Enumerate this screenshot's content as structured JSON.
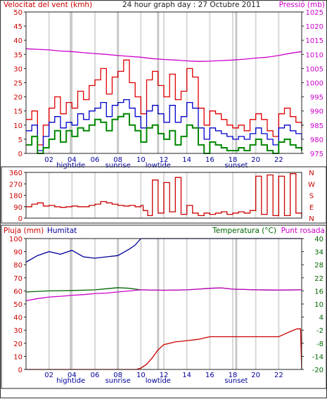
{
  "colors": {
    "wind": "#cc0000",
    "gust": "#e00000",
    "avg_wind": "#0000cc",
    "wind_min": "#008800",
    "pressure": "#cc00cc",
    "direction": "#cc0000",
    "rain": "#cc0000",
    "humidity": "#000099",
    "temperature": "#006600",
    "dewpoint": "#cc00cc",
    "grid": "#d8d8d8",
    "marker": "#c8c8c8"
  },
  "chart_data": [
    {
      "type": "line",
      "panel": "wind-pressure",
      "title": "24 hour graph day : 27 Octubre 2011",
      "left_label": "Velocitat del vent (kmh)",
      "right_label": "Pressió (mb)",
      "y_left": {
        "min": 0,
        "max": 50,
        "ticks": [
          "0",
          "5",
          "10",
          "15",
          "20",
          "25",
          "30",
          "35",
          "40",
          "45",
          "50"
        ]
      },
      "y_right": {
        "min": 975,
        "max": 1025,
        "ticks": [
          "975",
          "980",
          "985",
          "990",
          "995",
          "1000",
          "1005",
          "1010",
          "1015",
          "1020",
          "1025"
        ]
      },
      "x_ticks": [
        "02",
        "04",
        "06",
        "08",
        "10",
        "12",
        "14",
        "16",
        "18",
        "20",
        "22"
      ],
      "x_events": [
        {
          "label": "hightide",
          "x": 3.9
        },
        {
          "label": "sunrise",
          "x": 8.0
        },
        {
          "label": "lowtide",
          "x": 11.5
        },
        {
          "label": "sunset",
          "x": 18.3
        }
      ],
      "x_range": [
        0,
        24
      ],
      "series": [
        {
          "key": "pressure",
          "axis": "right",
          "x": [
            0,
            1,
            2,
            3,
            4,
            5,
            6,
            7,
            8,
            9,
            10,
            11,
            12,
            13,
            14,
            15,
            16,
            17,
            18,
            19,
            20,
            21,
            22,
            23,
            24
          ],
          "values": [
            1012,
            1011.8,
            1011.6,
            1011.2,
            1011,
            1010.6,
            1010.3,
            1010,
            1009.6,
            1009.3,
            1009,
            1008.5,
            1008.2,
            1008,
            1007.7,
            1007.5,
            1007.6,
            1007.8,
            1008,
            1008.3,
            1008.7,
            1009,
            1009.6,
            1010.4,
            1011
          ]
        },
        {
          "key": "gust",
          "axis": "left",
          "x": [
            0,
            0.5,
            1,
            1.5,
            2,
            2.5,
            3,
            3.5,
            4,
            4.5,
            5,
            5.5,
            6,
            6.5,
            7,
            7.5,
            8,
            8.5,
            9,
            9.5,
            10,
            10.5,
            11,
            11.5,
            12,
            12.5,
            13,
            13.5,
            14,
            14.5,
            15,
            15.5,
            16,
            16.5,
            17,
            17.5,
            18,
            18.5,
            19,
            19.5,
            20,
            20.5,
            21,
            21.5,
            22,
            22.5,
            23,
            23.5,
            24
          ],
          "values": [
            12,
            15,
            3,
            10,
            16,
            20,
            14,
            18,
            16,
            22,
            19,
            24,
            26,
            30,
            21,
            27,
            29,
            33,
            25,
            20,
            14,
            26,
            29,
            24,
            20,
            28,
            19,
            22,
            30,
            27,
            16,
            10,
            15,
            14,
            12,
            10,
            9,
            10,
            8,
            12,
            14,
            12,
            8,
            6,
            14,
            16,
            13,
            11,
            9
          ]
        },
        {
          "key": "avg_wind",
          "axis": "left",
          "x": [
            0,
            0.5,
            1,
            1.5,
            2,
            2.5,
            3,
            3.5,
            4,
            4.5,
            5,
            5.5,
            6,
            6.5,
            7,
            7.5,
            8,
            8.5,
            9,
            9.5,
            10,
            10.5,
            11,
            11.5,
            12,
            12.5,
            13,
            13.5,
            14,
            14.5,
            15,
            15.5,
            16,
            16.5,
            17,
            17.5,
            18,
            18.5,
            19,
            19.5,
            20,
            20.5,
            21,
            21.5,
            22,
            22.5,
            23,
            23.5,
            24
          ],
          "values": [
            8,
            10,
            1,
            6,
            11,
            13,
            9,
            11,
            10,
            14,
            12,
            15,
            16,
            18,
            13,
            17,
            18,
            19,
            16,
            13,
            9,
            15,
            17,
            14,
            11,
            17,
            11,
            13,
            18,
            16,
            9,
            5,
            9,
            8,
            7,
            6,
            5,
            6,
            5,
            7,
            9,
            7,
            5,
            3,
            9,
            10,
            8,
            7,
            5
          ]
        },
        {
          "key": "wind_min",
          "axis": "left",
          "x": [
            0,
            0.5,
            1,
            1.5,
            2,
            2.5,
            3,
            3.5,
            4,
            4.5,
            5,
            5.5,
            6,
            6.5,
            7,
            7.5,
            8,
            8.5,
            9,
            9.5,
            10,
            10.5,
            11,
            11.5,
            12,
            12.5,
            13,
            13.5,
            14,
            14.5,
            15,
            15.5,
            16,
            16.5,
            17,
            17.5,
            18,
            18.5,
            19,
            19.5,
            20,
            20.5,
            21,
            21.5,
            22,
            22.5,
            23,
            23.5,
            24
          ],
          "values": [
            3,
            6,
            0,
            2,
            5,
            8,
            4,
            8,
            6,
            9,
            8,
            10,
            12,
            11,
            8,
            12,
            13,
            14,
            10,
            8,
            4,
            9,
            10,
            7,
            5,
            8,
            3,
            6,
            10,
            9,
            3,
            0,
            4,
            3,
            2,
            1,
            1,
            2,
            1,
            3,
            5,
            3,
            1,
            0,
            4,
            5,
            3,
            2,
            1
          ]
        }
      ]
    },
    {
      "type": "line",
      "panel": "wind-direction",
      "y_left": {
        "min": 0,
        "max": 360,
        "ticks": [
          "0",
          "90",
          "180",
          "270",
          "360"
        ]
      },
      "y_right_labels": [
        "N",
        "W",
        "S",
        "E",
        "N"
      ],
      "x_ticks": [
        "02",
        "04",
        "06",
        "08",
        "10",
        "12",
        "14",
        "16",
        "18",
        "20",
        "22"
      ],
      "x_range": [
        0,
        24
      ],
      "series": [
        {
          "key": "direction",
          "x": [
            0,
            0.5,
            1,
            1.5,
            2,
            2.5,
            3,
            3.5,
            4,
            4.5,
            5,
            5.5,
            6,
            6.5,
            7,
            7.5,
            8,
            8.5,
            9,
            9.5,
            10,
            10.2,
            10.6,
            11,
            11.5,
            12,
            12.5,
            13,
            13.5,
            14,
            14.5,
            15,
            15.5,
            16,
            16.5,
            17,
            17.5,
            18,
            18.5,
            19,
            19.5,
            20,
            20.5,
            21,
            21.5,
            22,
            22.5,
            23,
            23.5,
            24
          ],
          "values": [
            90,
            110,
            120,
            95,
            100,
            90,
            85,
            90,
            95,
            90,
            90,
            100,
            110,
            130,
            120,
            110,
            100,
            95,
            100,
            90,
            100,
            60,
            20,
            300,
            40,
            280,
            50,
            320,
            30,
            100,
            40,
            20,
            40,
            30,
            40,
            50,
            30,
            40,
            50,
            40,
            60,
            330,
            30,
            340,
            20,
            330,
            20,
            350,
            40,
            10
          ]
        }
      ]
    },
    {
      "type": "line",
      "panel": "rain-humidity-temperature",
      "left_label": "Pluja (mm)",
      "mid_label": "Humitat",
      "right_label": "Temperatura (°C)",
      "right_label2": "Punt rosada",
      "y_left": {
        "min": 0,
        "max": 100,
        "ticks": [
          "0",
          "10",
          "20",
          "30",
          "40",
          "50",
          "60",
          "70",
          "80",
          "90",
          "100"
        ]
      },
      "y_right": {
        "min": -20,
        "max": 40,
        "ticks": [
          "-20",
          "-14",
          "-8",
          "-2",
          "4",
          "10",
          "16",
          "22",
          "28",
          "34",
          "40"
        ]
      },
      "x_ticks": [
        "02",
        "04",
        "06",
        "08",
        "10",
        "12",
        "14",
        "16",
        "18",
        "20",
        "22"
      ],
      "x_events": [
        {
          "label": "hightide",
          "x": 3.9
        },
        {
          "label": "sunrise",
          "x": 8.0
        },
        {
          "label": "lowtide",
          "x": 11.5
        },
        {
          "label": "sunset",
          "x": 18.3
        }
      ],
      "x_range": [
        0,
        24
      ],
      "series": [
        {
          "key": "humidity",
          "axis": "left",
          "x": [
            0,
            1,
            2,
            3,
            4,
            5,
            6,
            7,
            8,
            9,
            9.5,
            10,
            10.5,
            12,
            14,
            16,
            18,
            20,
            22,
            24
          ],
          "values": [
            82,
            87,
            90,
            88,
            91,
            86,
            85,
            86,
            87,
            92,
            95,
            100,
            100,
            100,
            100,
            100,
            100,
            100,
            100,
            100
          ]
        },
        {
          "key": "rain",
          "axis": "left",
          "x": [
            0,
            2,
            4,
            6,
            8,
            9,
            9.6,
            10,
            10.5,
            11,
            11.5,
            12,
            13,
            14,
            15,
            16,
            18,
            20,
            21,
            22,
            22.5,
            23,
            23.6,
            23.9,
            24
          ],
          "values": [
            0,
            0,
            0,
            0,
            0,
            0,
            0,
            1,
            4,
            9,
            15,
            19,
            21,
            22,
            23,
            25,
            25,
            25,
            25,
            25,
            27,
            29,
            31,
            31,
            0
          ]
        },
        {
          "key": "temperature",
          "axis": "right",
          "x": [
            0,
            2,
            4,
            6,
            7,
            8,
            9,
            10,
            12,
            14,
            15,
            16,
            17,
            18,
            20,
            22,
            24
          ],
          "values": [
            15.5,
            16,
            16.2,
            16.5,
            17,
            17.5,
            17.2,
            16.5,
            16.3,
            16.5,
            16.8,
            17.2,
            17.4,
            16.8,
            16.5,
            16.4,
            16.5
          ]
        },
        {
          "key": "dewpoint",
          "axis": "right",
          "x": [
            0,
            1,
            2,
            3,
            4,
            5,
            6,
            7,
            8,
            9,
            10,
            12,
            14,
            15,
            16,
            17,
            18,
            20,
            22,
            24
          ],
          "values": [
            11.5,
            12.5,
            13.2,
            13.5,
            14,
            14.3,
            14.8,
            15,
            15.5,
            16,
            16.5,
            16.3,
            16.5,
            16.8,
            17.2,
            17.4,
            16.8,
            16.5,
            16.4,
            16.5
          ]
        }
      ]
    }
  ]
}
